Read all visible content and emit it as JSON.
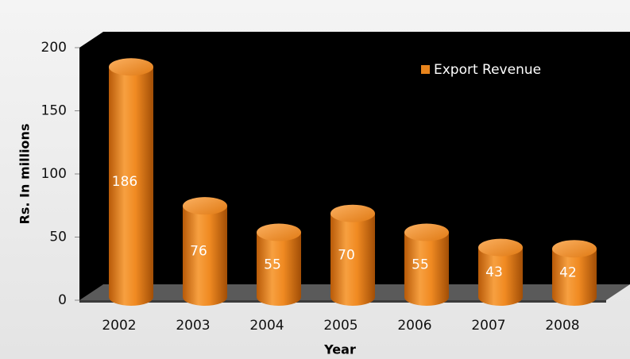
{
  "chart_data": {
    "type": "bar",
    "y_label": "Rs. In millions",
    "x_label": "Year",
    "categories": [
      "2002",
      "2003",
      "2004",
      "2005",
      "2006",
      "2007",
      "2008"
    ],
    "series": [
      {
        "name": "Export Revenue",
        "color": "#e8841c",
        "values": [
          186,
          76,
          55,
          70,
          55,
          43,
          42
        ]
      }
    ],
    "ylim": [
      0,
      200
    ],
    "yticks": [
      0,
      50,
      100,
      150,
      200
    ],
    "legend": "upper right"
  }
}
